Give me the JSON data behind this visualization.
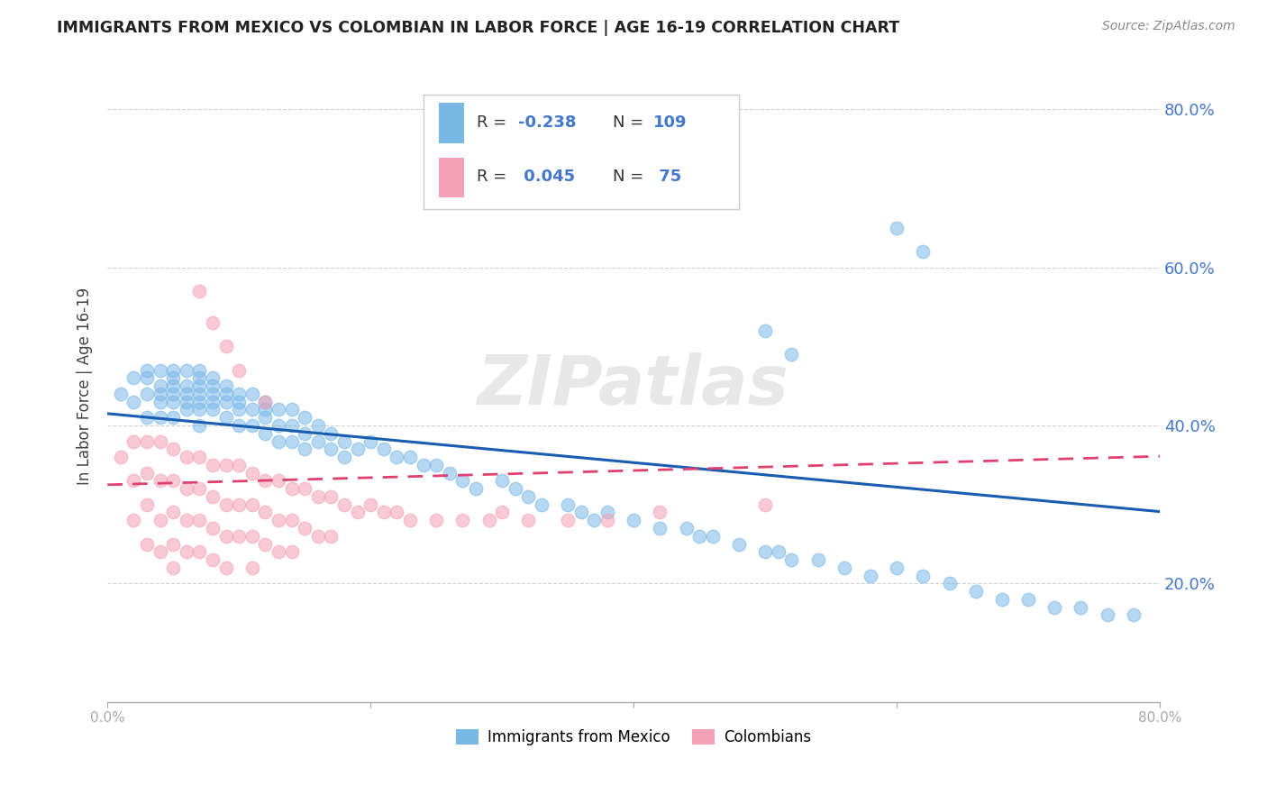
{
  "title": "IMMIGRANTS FROM MEXICO VS COLOMBIAN IN LABOR FORCE | AGE 16-19 CORRELATION CHART",
  "source": "Source: ZipAtlas.com",
  "ylabel": "In Labor Force | Age 16-19",
  "ytick_labels": [
    "20.0%",
    "40.0%",
    "60.0%",
    "80.0%"
  ],
  "ytick_values": [
    0.2,
    0.4,
    0.6,
    0.8
  ],
  "xlim": [
    0.0,
    0.8
  ],
  "ylim": [
    0.05,
    0.85
  ],
  "mexico_color": "#7ab8e8",
  "colombia_color": "#f4a0b5",
  "mexico_line_color": "#1a5cb0",
  "colombia_line_color": "#e04070",
  "mexico_R": -0.238,
  "mexico_N": 109,
  "colombia_R": 0.045,
  "colombia_N": 75,
  "watermark": "ZIPatlas",
  "background_color": "#ffffff",
  "grid_color": "#cccccc",
  "axis_color": "#aaaaaa",
  "title_color": "#222222",
  "right_tick_color": "#4477cc",
  "legend_label_color": "#333333",
  "legend_value_color": "#4477cc",
  "mexico_line_slope": -0.155,
  "mexico_line_intercept": 0.415,
  "colombia_line_slope": 0.045,
  "colombia_line_intercept": 0.325,
  "mexico_scatter_x": [
    0.01,
    0.02,
    0.02,
    0.03,
    0.03,
    0.03,
    0.03,
    0.04,
    0.04,
    0.04,
    0.04,
    0.04,
    0.05,
    0.05,
    0.05,
    0.05,
    0.05,
    0.05,
    0.06,
    0.06,
    0.06,
    0.06,
    0.06,
    0.07,
    0.07,
    0.07,
    0.07,
    0.07,
    0.07,
    0.07,
    0.08,
    0.08,
    0.08,
    0.08,
    0.08,
    0.09,
    0.09,
    0.09,
    0.09,
    0.1,
    0.1,
    0.1,
    0.1,
    0.11,
    0.11,
    0.11,
    0.12,
    0.12,
    0.12,
    0.12,
    0.13,
    0.13,
    0.13,
    0.14,
    0.14,
    0.14,
    0.15,
    0.15,
    0.15,
    0.16,
    0.16,
    0.17,
    0.17,
    0.18,
    0.18,
    0.19,
    0.2,
    0.21,
    0.22,
    0.23,
    0.24,
    0.25,
    0.26,
    0.27,
    0.28,
    0.3,
    0.31,
    0.32,
    0.33,
    0.35,
    0.36,
    0.37,
    0.38,
    0.4,
    0.42,
    0.44,
    0.45,
    0.46,
    0.48,
    0.5,
    0.51,
    0.52,
    0.54,
    0.56,
    0.58,
    0.6,
    0.62,
    0.64,
    0.66,
    0.68,
    0.7,
    0.72,
    0.74,
    0.76,
    0.78,
    0.6,
    0.62,
    0.5,
    0.52
  ],
  "mexico_scatter_y": [
    0.44,
    0.46,
    0.43,
    0.46,
    0.44,
    0.41,
    0.47,
    0.45,
    0.43,
    0.47,
    0.44,
    0.41,
    0.47,
    0.45,
    0.43,
    0.46,
    0.44,
    0.41,
    0.47,
    0.44,
    0.42,
    0.45,
    0.43,
    0.47,
    0.45,
    0.43,
    0.46,
    0.44,
    0.42,
    0.4,
    0.46,
    0.44,
    0.42,
    0.45,
    0.43,
    0.45,
    0.43,
    0.41,
    0.44,
    0.44,
    0.42,
    0.4,
    0.43,
    0.44,
    0.42,
    0.4,
    0.43,
    0.41,
    0.39,
    0.42,
    0.42,
    0.4,
    0.38,
    0.42,
    0.4,
    0.38,
    0.41,
    0.39,
    0.37,
    0.4,
    0.38,
    0.39,
    0.37,
    0.38,
    0.36,
    0.37,
    0.38,
    0.37,
    0.36,
    0.36,
    0.35,
    0.35,
    0.34,
    0.33,
    0.32,
    0.33,
    0.32,
    0.31,
    0.3,
    0.3,
    0.29,
    0.28,
    0.29,
    0.28,
    0.27,
    0.27,
    0.26,
    0.26,
    0.25,
    0.24,
    0.24,
    0.23,
    0.23,
    0.22,
    0.21,
    0.22,
    0.21,
    0.2,
    0.19,
    0.18,
    0.18,
    0.17,
    0.17,
    0.16,
    0.16,
    0.65,
    0.62,
    0.52,
    0.49
  ],
  "colombia_scatter_x": [
    0.01,
    0.02,
    0.02,
    0.02,
    0.03,
    0.03,
    0.03,
    0.03,
    0.04,
    0.04,
    0.04,
    0.04,
    0.05,
    0.05,
    0.05,
    0.05,
    0.05,
    0.06,
    0.06,
    0.06,
    0.06,
    0.07,
    0.07,
    0.07,
    0.07,
    0.08,
    0.08,
    0.08,
    0.08,
    0.09,
    0.09,
    0.09,
    0.09,
    0.1,
    0.1,
    0.1,
    0.11,
    0.11,
    0.11,
    0.11,
    0.12,
    0.12,
    0.12,
    0.13,
    0.13,
    0.13,
    0.14,
    0.14,
    0.14,
    0.15,
    0.15,
    0.16,
    0.16,
    0.17,
    0.17,
    0.18,
    0.19,
    0.2,
    0.21,
    0.22,
    0.23,
    0.25,
    0.27,
    0.29,
    0.3,
    0.32,
    0.35,
    0.38,
    0.42,
    0.5,
    0.07,
    0.08,
    0.09,
    0.1,
    0.12
  ],
  "colombia_scatter_y": [
    0.36,
    0.38,
    0.33,
    0.28,
    0.38,
    0.34,
    0.3,
    0.25,
    0.38,
    0.33,
    0.28,
    0.24,
    0.37,
    0.33,
    0.29,
    0.25,
    0.22,
    0.36,
    0.32,
    0.28,
    0.24,
    0.36,
    0.32,
    0.28,
    0.24,
    0.35,
    0.31,
    0.27,
    0.23,
    0.35,
    0.3,
    0.26,
    0.22,
    0.35,
    0.3,
    0.26,
    0.34,
    0.3,
    0.26,
    0.22,
    0.33,
    0.29,
    0.25,
    0.33,
    0.28,
    0.24,
    0.32,
    0.28,
    0.24,
    0.32,
    0.27,
    0.31,
    0.26,
    0.31,
    0.26,
    0.3,
    0.29,
    0.3,
    0.29,
    0.29,
    0.28,
    0.28,
    0.28,
    0.28,
    0.29,
    0.28,
    0.28,
    0.28,
    0.29,
    0.3,
    0.57,
    0.53,
    0.5,
    0.47,
    0.43
  ]
}
